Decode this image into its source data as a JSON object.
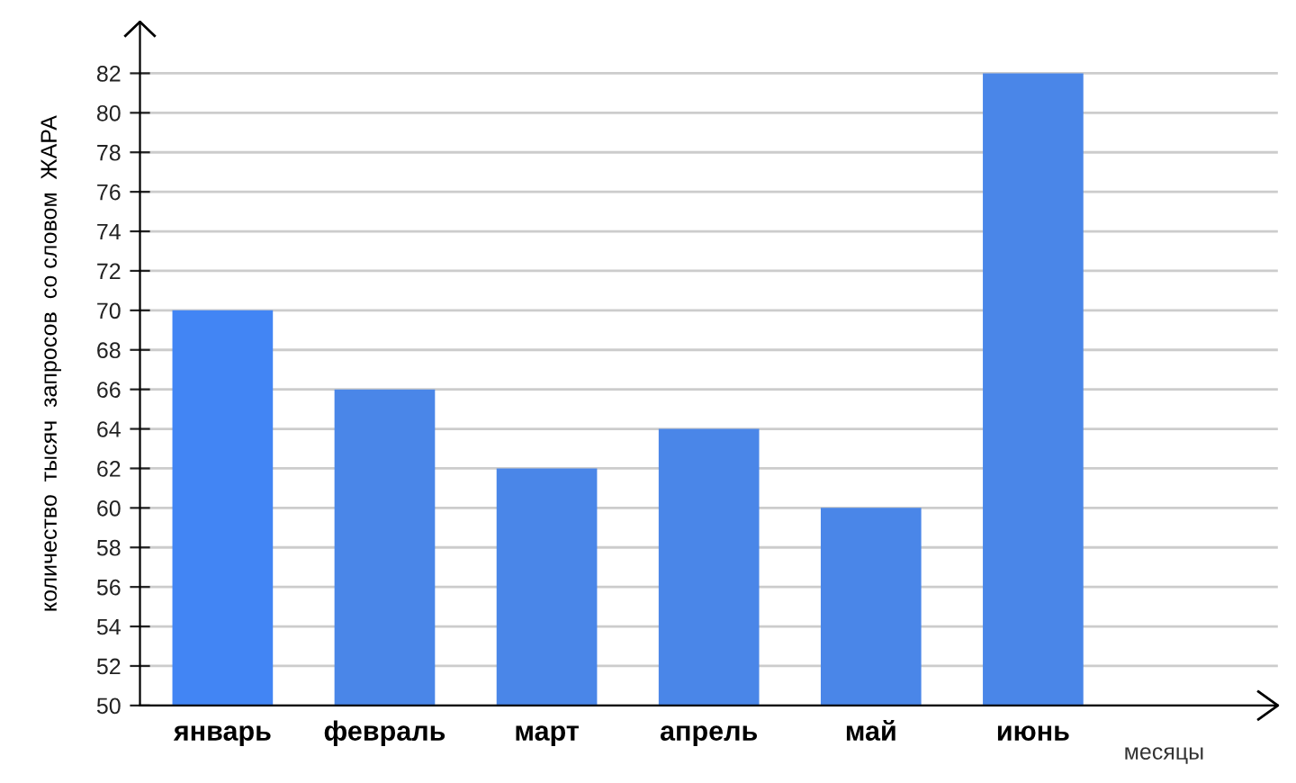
{
  "chart_data": {
    "type": "bar",
    "categories": [
      "январь",
      "февраль",
      "март",
      "апрель",
      "май",
      "июнь"
    ],
    "values": [
      70,
      66,
      62,
      64,
      60,
      82
    ],
    "colors": [
      "#4285f4",
      "#4a86e8",
      "#4a86e8",
      "#4a86e8",
      "#4a86e8",
      "#4a86e8"
    ],
    "xlabel": "месяцы",
    "ylabel": "количество  тысяч  запросов  со словом  ЖАРА",
    "ylim": [
      50,
      84.6
    ],
    "yticks": [
      50,
      52,
      54,
      56,
      58,
      60,
      62,
      64,
      66,
      68,
      70,
      72,
      74,
      76,
      78,
      80,
      82
    ],
    "grid": "y",
    "legend": false
  }
}
